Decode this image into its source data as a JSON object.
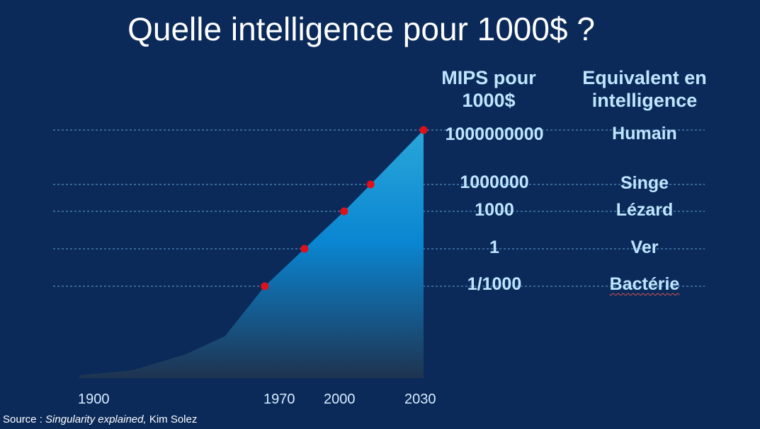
{
  "title": "Quelle intelligence pour 1000$ ?",
  "columns": {
    "mips_header_line1": "MIPS pour",
    "mips_header_line2": "1000$",
    "equiv_header_line1": "Equivalent en",
    "equiv_header_line2": "intelligence"
  },
  "rows": [
    {
      "mips": "1000000000",
      "equivalent": "Humain"
    },
    {
      "mips": "1000000",
      "equivalent": "Singe"
    },
    {
      "mips": "1000",
      "equivalent": "Lézard"
    },
    {
      "mips": "1",
      "equivalent": "Ver"
    },
    {
      "mips": "1/1000",
      "equivalent": "Bactérie"
    }
  ],
  "source": {
    "prefix": "Source :",
    "work": "Singularity explained,",
    "author": "Kim Solez"
  },
  "colors": {
    "background": "#0b2a5a",
    "area_top": "#2aa6d9",
    "area_mid": "#0a86d2",
    "area_bottom": "#1f3350",
    "points": "#e0101a",
    "gridlines": "#5fa7d6",
    "labels": "#bfe6ff"
  },
  "chart_data": {
    "type": "area",
    "title": "Quelle intelligence pour 1000$ ?",
    "xlabel": "",
    "ylabel": "MIPS pour 1000$",
    "x_ticks": [
      "1900",
      "1970",
      "2000",
      "2030"
    ],
    "xlim": [
      1900,
      2030
    ],
    "y_scale": "log10",
    "ylim_log10": [
      -10,
      9
    ],
    "area_curve": [
      {
        "x": 1900,
        "log10_mips": -10
      },
      {
        "x": 1920,
        "log10_mips": -9.4
      },
      {
        "x": 1940,
        "log10_mips": -8.2
      },
      {
        "x": 1955,
        "log10_mips": -6.8
      },
      {
        "x": 1970,
        "log10_mips": -3.0
      },
      {
        "x": 1985,
        "log10_mips": 0
      },
      {
        "x": 2000,
        "log10_mips": 3.0
      },
      {
        "x": 2010,
        "log10_mips": 6.0
      },
      {
        "x": 2030,
        "log10_mips": 9.0
      }
    ],
    "points": [
      {
        "x": 1970,
        "log10_mips": -3
      },
      {
        "x": 1985,
        "log10_mips": 0
      },
      {
        "x": 2000,
        "log10_mips": 3
      },
      {
        "x": 2010,
        "log10_mips": 6
      },
      {
        "x": 2030,
        "log10_mips": 9
      }
    ],
    "reference_levels": [
      {
        "label": "1000000000",
        "equivalent": "Humain",
        "log10_mips": 9
      },
      {
        "label": "1000000",
        "equivalent": "Singe",
        "log10_mips": 6
      },
      {
        "label": "1000",
        "equivalent": "Lézard",
        "log10_mips": 3
      },
      {
        "label": "1",
        "equivalent": "Ver",
        "log10_mips": 0
      },
      {
        "label": "1/1000",
        "equivalent": "Bactérie",
        "log10_mips": -3
      }
    ]
  }
}
